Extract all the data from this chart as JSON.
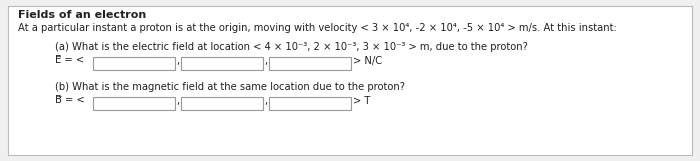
{
  "title": "Fields of an electron",
  "line1": "At a particular instant a proton is at the origin, moving with velocity < 3 × 10⁴, -2 × 10⁴, -5 × 10⁴ > m/s. At this instant:",
  "qa_label": "(a) What is the electric field at location < 4 × 10⁻³, 2 × 10⁻³, 3 × 10⁻³ > m, due to the proton?",
  "qa_field_label": "E⃗ = <",
  "qa_suffix": "> N/C",
  "qb_label": "(b) What is the magnetic field at the same location due to the proton?",
  "qb_field_label": "B⃗ = <",
  "qb_suffix": "> T",
  "bg_color": "#f0f0f0",
  "box_color": "#ffffff",
  "border_color": "#bbbbbb",
  "text_color": "#222222",
  "input_box_color": "#ffffff",
  "input_box_border": "#999999",
  "title_fontsize": 8.0,
  "body_fontsize": 7.2,
  "figwidth": 7.0,
  "figheight": 1.61,
  "dpi": 100
}
